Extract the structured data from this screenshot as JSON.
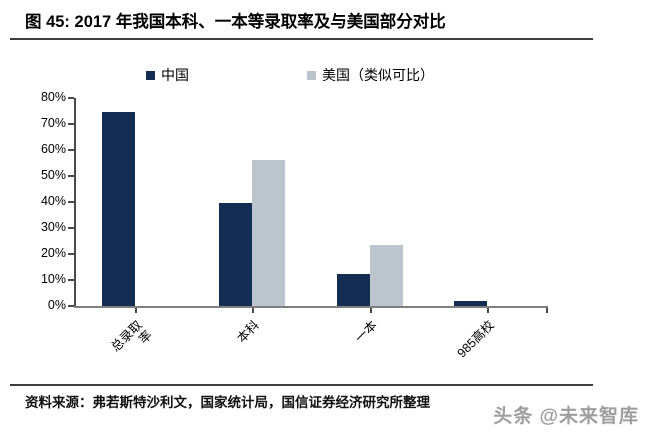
{
  "title": {
    "label": "图 45:  2017 年我国本科、一本等录取率及与美国部分对比"
  },
  "colors": {
    "china_series": "#132d53",
    "us_series": "#bcc4cd",
    "axis": "#4a4a4a",
    "baseline": "#7f7f7f"
  },
  "chart_data": {
    "type": "bar",
    "title": "2017 年我国本科、一本等录取率及与美国部分对比",
    "categories": [
      "总录取\n率",
      "本科",
      "一本",
      "985高校"
    ],
    "series": [
      {
        "name": "中国",
        "color": "#132d53",
        "values": [
          74.5,
          39.5,
          12.5,
          2
        ]
      },
      {
        "name": "美国（类似可比）",
        "color": "#bcc4cd",
        "values": [
          null,
          56,
          23.5,
          null
        ]
      }
    ],
    "xlabel": "",
    "ylabel": "",
    "ylim": [
      0,
      80
    ],
    "ytick_step": 10,
    "ytick_labels": [
      "0%",
      "10%",
      "20%",
      "30%",
      "40%",
      "50%",
      "60%",
      "70%",
      "80%"
    ],
    "grid": false,
    "legend_position": "top"
  },
  "footer": {
    "source": "资料来源：弗若斯特沙利文，国家统计局，国信证券经济研究所整理",
    "watermark": "头条 @未来智库"
  }
}
